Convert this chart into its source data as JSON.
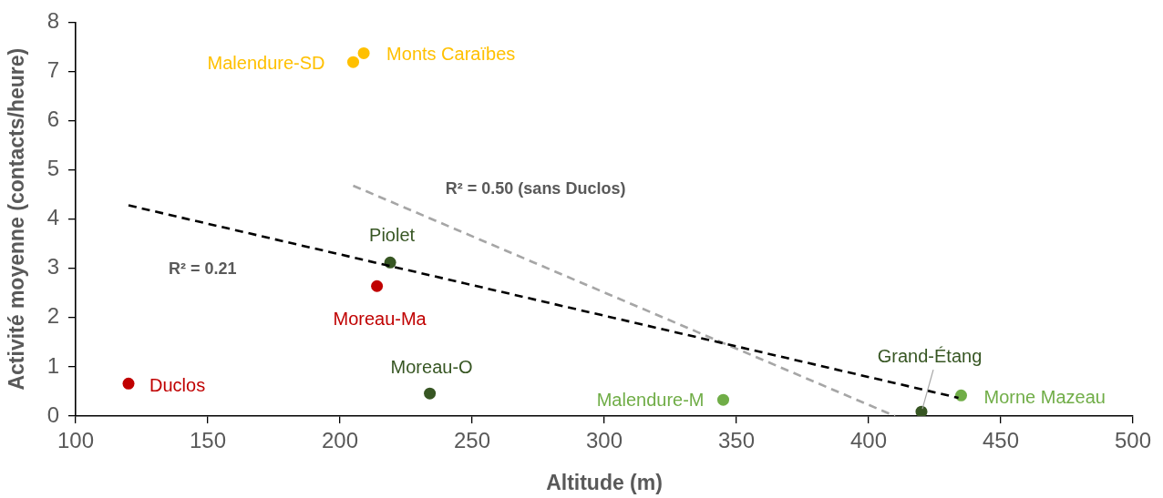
{
  "chart_data": {
    "type": "scatter",
    "xlabel": "Altitude (m)",
    "ylabel": "Activité moyenne (contacts/heure)",
    "xlim": [
      100,
      500
    ],
    "xticks": [
      100,
      150,
      200,
      250,
      300,
      350,
      400,
      450,
      500
    ],
    "ylim": [
      0,
      8
    ],
    "yticks": [
      0,
      1,
      2,
      3,
      4,
      5,
      6,
      7,
      8
    ],
    "marker": "circle",
    "series": [
      {
        "name": "Duclos",
        "color": "#c00000",
        "x": [
          120
        ],
        "values": [
          0.66
        ]
      },
      {
        "name": "Malendure-SD",
        "color": "#ffc000",
        "x": [
          205
        ],
        "values": [
          7.19
        ]
      },
      {
        "name": "Monts Caraïbes",
        "color": "#ffc000",
        "x": [
          209
        ],
        "values": [
          7.37
        ]
      },
      {
        "name": "Piolet",
        "color": "#375623",
        "x": [
          219
        ],
        "values": [
          3.12
        ]
      },
      {
        "name": "Moreau-Ma",
        "color": "#c00000",
        "x": [
          214
        ],
        "values": [
          2.64
        ]
      },
      {
        "name": "Moreau-O",
        "color": "#375623",
        "x": [
          234
        ],
        "values": [
          0.46
        ]
      },
      {
        "name": "Malendure-M",
        "color": "#70ad47",
        "x": [
          345
        ],
        "values": [
          0.33
        ]
      },
      {
        "name": "Grand-Étang",
        "color": "#375623",
        "x": [
          420
        ],
        "values": [
          0.09
        ]
      },
      {
        "name": "Morne Mazeau",
        "color": "#70ad47",
        "x": [
          435
        ],
        "values": [
          0.42
        ]
      },
      {
        "type": "line",
        "color": "#000000",
        "line_style": "dashed",
        "marker": "none",
        "x": [
          120,
          434
        ],
        "values": [
          4.28,
          0.37
        ]
      },
      {
        "type": "line",
        "color": "#a6a6a6",
        "line_style": "dashed",
        "marker": "none",
        "x": [
          205,
          410
        ],
        "values": [
          4.68,
          0
        ]
      }
    ],
    "annotations": [
      "R² = 0.21",
      "R² = 0.50 (sans Duclos)"
    ]
  }
}
